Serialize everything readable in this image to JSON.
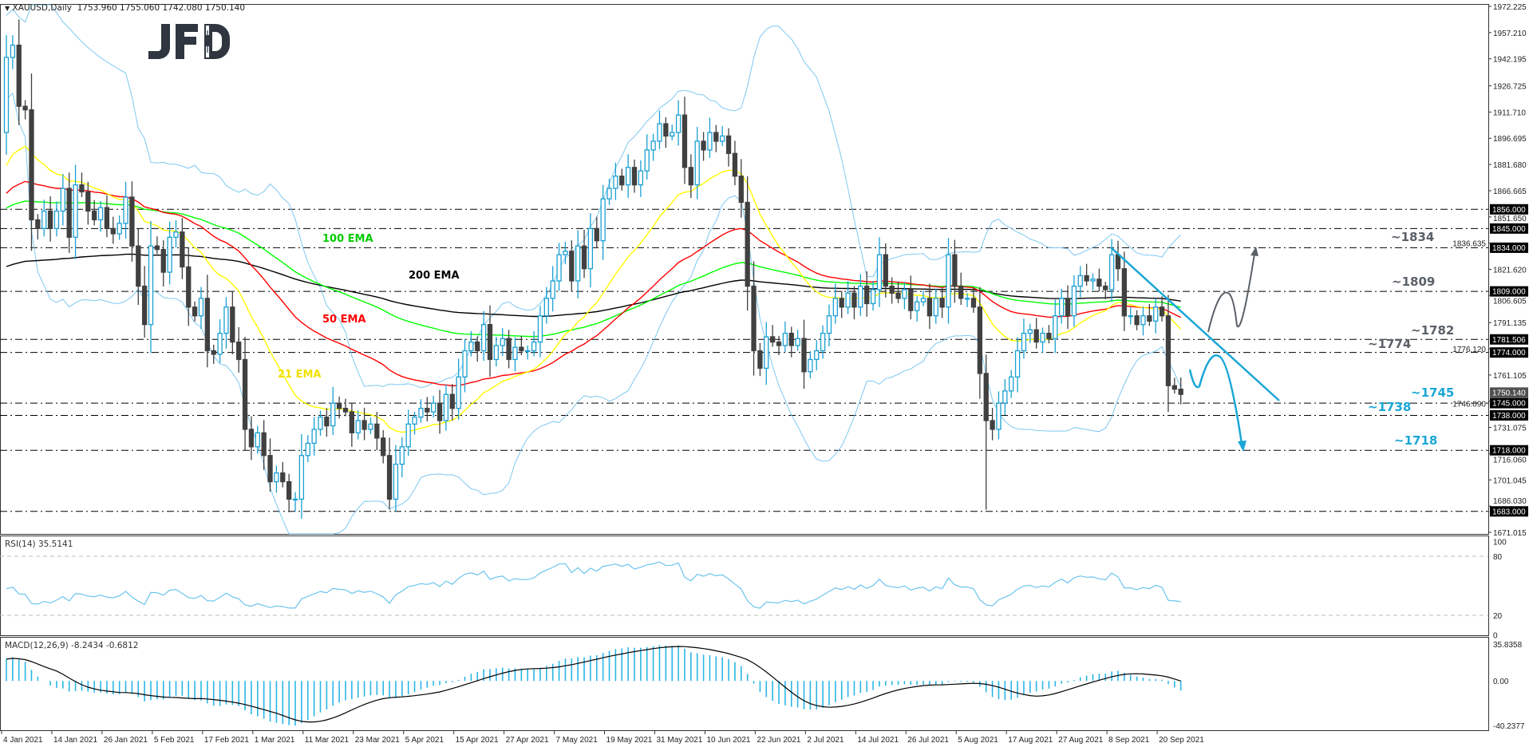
{
  "header": {
    "symbol": "XAUUSD,Daily",
    "ohlc_text": "1753.960 1755.060 1742.080 1750.140"
  },
  "logo": {
    "text": "JFD"
  },
  "ema_labels": [
    {
      "text": "100 EMA",
      "color": "#00cc00"
    },
    {
      "text": "200 EMA",
      "color": "#000000"
    },
    {
      "text": "50 EMA",
      "color": "#ff0000"
    },
    {
      "text": "21 EMA",
      "color": "#f2e000"
    }
  ],
  "level_labels": [
    {
      "text": "~1834",
      "color": "#5a6068"
    },
    {
      "text": "~1809",
      "color": "#5a6068"
    },
    {
      "text": "~1782",
      "color": "#5a6068"
    },
    {
      "text": "~1774",
      "color": "#5a6068"
    },
    {
      "text": "~1745",
      "color": "#1aa6d6"
    },
    {
      "text": "~1738",
      "color": "#1aa6d6"
    },
    {
      "text": "~1718",
      "color": "#1aa6d6"
    }
  ],
  "rsi": {
    "label": "RSI(14) 35.5141",
    "ticks": [
      "100",
      "80",
      "20",
      "0"
    ],
    "levels": [
      80,
      20
    ]
  },
  "macd": {
    "label": "MACD(12,26,9) -8.2434 -0.6812",
    "ticks": [
      "35.8358",
      "0.00",
      "-40.2377"
    ],
    "range": [
      -40.2377,
      35.8358
    ]
  },
  "colors": {
    "bull_outline": "#1aa0d2",
    "bear_fill": "#404040",
    "bollinger": "#7ec8f2",
    "ema21": "#ffff00",
    "ema50": "#ff0000",
    "ema100": "#00ff00",
    "ema200": "#000000",
    "trendline": "#1aa6d6",
    "rsi_line": "#6cc4ee",
    "macd_hist": "#29b6e6",
    "macd_signal": "#000000",
    "price_box": "#000000",
    "current_price_box": "#505050"
  },
  "chart_data": {
    "type": "candlestick",
    "symbol": "XAUUSD",
    "timeframe": "Daily",
    "ylim": [
      1671.015,
      1972.225
    ],
    "price_ticks": [
      "1972.225",
      "1957.210",
      "1942.195",
      "1926.725",
      "1911.710",
      "1896.695",
      "1881.680",
      "1866.665",
      "1851.650",
      "1836.635",
      "1821.620",
      "1806.605",
      "1791.135",
      "1776.120",
      "1761.105",
      "1746.090",
      "1731.075",
      "1716.060",
      "1701.045",
      "1686.030",
      "1671.015"
    ],
    "date_labels": [
      "4 Jan 2021",
      "14 Jan 2021",
      "26 Jan 2021",
      "5 Feb 2021",
      "17 Feb 2021",
      "1 Mar 2021",
      "11 Mar 2021",
      "23 Mar 2021",
      "5 Apr 2021",
      "15 Apr 2021",
      "27 Apr 2021",
      "7 May 2021",
      "19 May 2021",
      "31 May 2021",
      "10 Jun 2021",
      "22 Jun 2021",
      "2 Jul 2021",
      "14 Jul 2021",
      "26 Jul 2021",
      "5 Aug 2021",
      "17 Aug 2021",
      "27 Aug 2021",
      "8 Sep 2021",
      "20 Sep 2021"
    ],
    "levels": [
      {
        "price": 1856.0,
        "label": "1856.000"
      },
      {
        "price": 1845.0,
        "label": "1845.000"
      },
      {
        "price": 1834.0,
        "label": "1834.000"
      },
      {
        "price": 1809.0,
        "label": "1809.000"
      },
      {
        "price": 1781.506,
        "label": "1781.506"
      },
      {
        "price": 1774.0,
        "label": "1774.000"
      },
      {
        "price": 1745.0,
        "label": "1745.000"
      },
      {
        "price": 1738.0,
        "label": "1738.000"
      },
      {
        "price": 1718.0,
        "label": "1718.000"
      },
      {
        "price": 1683.0,
        "label": "1683.000"
      }
    ],
    "current_price": {
      "price": 1750.14,
      "label": "1750.140"
    },
    "indicators": [
      "EMA 21",
      "EMA 50",
      "EMA 100",
      "EMA 200",
      "Bollinger Bands",
      "RSI(14)",
      "MACD(12,26,9)"
    ],
    "close": [
      1943,
      1950,
      1915,
      1913,
      1850,
      1845,
      1855,
      1845,
      1855,
      1868,
      1840,
      1870,
      1866,
      1855,
      1850,
      1857,
      1845,
      1842,
      1848,
      1863,
      1835,
      1812,
      1790,
      1835,
      1833,
      1820,
      1840,
      1843,
      1823,
      1800,
      1795,
      1805,
      1775,
      1773,
      1785,
      1800,
      1780,
      1770,
      1730,
      1720,
      1728,
      1715,
      1700,
      1705,
      1700,
      1690,
      1690,
      1715,
      1722,
      1730,
      1737,
      1732,
      1745,
      1742,
      1740,
      1728,
      1735,
      1730,
      1733,
      1725,
      1715,
      1690,
      1710,
      1720,
      1733,
      1737,
      1742,
      1740,
      1745,
      1735,
      1750,
      1742,
      1760,
      1775,
      1780,
      1775,
      1790,
      1770,
      1778,
      1782,
      1770,
      1777,
      1775,
      1775,
      1780,
      1795,
      1805,
      1815,
      1830,
      1832,
      1815,
      1835,
      1822,
      1845,
      1838,
      1862,
      1868,
      1875,
      1870,
      1880,
      1870,
      1878,
      1890,
      1895,
      1905,
      1898,
      1900,
      1910,
      1880,
      1870,
      1895,
      1890,
      1900,
      1895,
      1898,
      1888,
      1875,
      1860,
      1812,
      1775,
      1765,
      1783,
      1780,
      1778,
      1785,
      1778,
      1782,
      1763,
      1770,
      1775,
      1785,
      1795,
      1805,
      1800,
      1808,
      1800,
      1812,
      1802,
      1810,
      1830,
      1812,
      1808,
      1805,
      1810,
      1798,
      1803,
      1805,
      1795,
      1805,
      1800,
      1830,
      1812,
      1805,
      1805,
      1800,
      1762,
      1735,
      1730,
      1745,
      1752,
      1760,
      1775,
      1785,
      1787,
      1780,
      1785,
      1782,
      1795,
      1805,
      1795,
      1812,
      1818,
      1815,
      1816,
      1812,
      1810,
      1830,
      1822,
      1795,
      1795,
      1790,
      1795,
      1792,
      1800,
      1795,
      1755,
      1753,
      1750
    ],
    "open_first": 1900,
    "low_extremes": {
      "156": 1684,
      "46": 1683,
      "61": 1684
    }
  }
}
